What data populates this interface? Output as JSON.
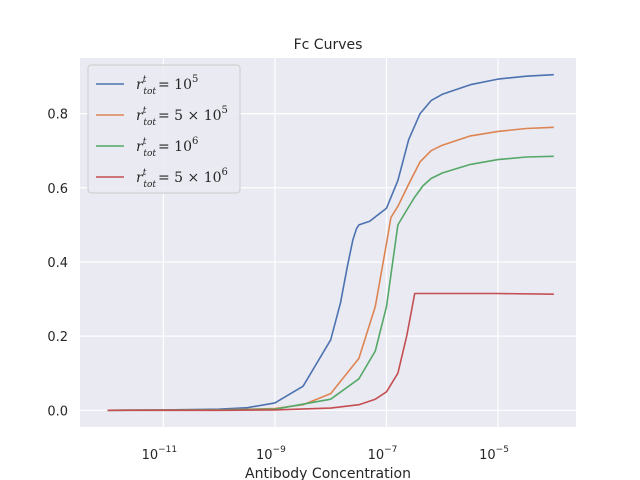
{
  "chart_data": {
    "type": "line",
    "title": "Fc Curves",
    "xlabel": "Antibody Concentration",
    "ylabel": "",
    "xscale": "log",
    "xlim": [
      3.2e-13,
      0.00025
    ],
    "ylim": [
      -0.045,
      0.95
    ],
    "grid": true,
    "legend_position": "top-left",
    "xticks": [
      {
        "value": 1e-11,
        "base": "10",
        "exp": "−11"
      },
      {
        "value": 1e-09,
        "base": "10",
        "exp": "−9"
      },
      {
        "value": 1e-07,
        "base": "10",
        "exp": "−7"
      },
      {
        "value": 1e-05,
        "base": "10",
        "exp": "−5"
      }
    ],
    "yticks": [
      {
        "value": 0.0,
        "label": "0.0"
      },
      {
        "value": 0.2,
        "label": "0.2"
      },
      {
        "value": 0.4,
        "label": "0.4"
      },
      {
        "value": 0.6,
        "label": "0.6"
      },
      {
        "value": 0.8,
        "label": "0.8"
      }
    ],
    "series": [
      {
        "name": "r_tot^t = 10^5",
        "legend": {
          "pre": "= 10",
          "sup": "5",
          "post": ""
        },
        "color": "#4c72b0",
        "x": [
          1e-12,
          1e-11,
          1e-10,
          3.2e-10,
          1e-09,
          3.2e-09,
          1e-08,
          1.5e-08,
          2e-08,
          2.5e-08,
          2.9e-08,
          3.2e-08,
          5e-08,
          1e-07,
          1.6e-07,
          2.5e-07,
          4e-07,
          6.3e-07,
          1e-06,
          3.2e-06,
          1e-05,
          3.2e-05,
          0.0001
        ],
        "y": [
          0.0,
          0.001,
          0.003,
          0.007,
          0.02,
          0.065,
          0.19,
          0.29,
          0.39,
          0.46,
          0.49,
          0.5,
          0.51,
          0.545,
          0.62,
          0.73,
          0.8,
          0.835,
          0.852,
          0.878,
          0.893,
          0.901,
          0.905
        ]
      },
      {
        "name": "r_tot^t = 5 × 10^5",
        "legend": {
          "pre": "= 5 × 10",
          "sup": "5",
          "post": ""
        },
        "color": "#dd8452",
        "x": [
          1e-12,
          1e-10,
          1e-09,
          3.2e-09,
          1e-08,
          3.2e-08,
          6.3e-08,
          1e-07,
          1.2e-07,
          1.6e-07,
          2.5e-07,
          4e-07,
          6.3e-07,
          1e-06,
          3.2e-06,
          1e-05,
          3.2e-05,
          0.0001
        ],
        "y": [
          0.0,
          0.001,
          0.005,
          0.015,
          0.045,
          0.14,
          0.28,
          0.45,
          0.52,
          0.55,
          0.61,
          0.67,
          0.7,
          0.715,
          0.74,
          0.752,
          0.76,
          0.763
        ]
      },
      {
        "name": "r_tot^t = 10^6",
        "legend": {
          "pre": "= 10",
          "sup": "6",
          "post": ""
        },
        "color": "#55a868",
        "x": [
          1e-12,
          1e-10,
          1e-09,
          1e-08,
          3.2e-08,
          6.3e-08,
          1e-07,
          1.6e-07,
          2.3e-07,
          3.2e-07,
          4.5e-07,
          6.3e-07,
          1e-06,
          3.2e-06,
          1e-05,
          3.2e-05,
          0.0001
        ],
        "y": [
          0.0,
          0.001,
          0.003,
          0.03,
          0.085,
          0.16,
          0.28,
          0.5,
          0.54,
          0.575,
          0.605,
          0.625,
          0.64,
          0.663,
          0.676,
          0.683,
          0.685
        ]
      },
      {
        "name": "r_tot^t = 5 × 10^6",
        "legend": {
          "pre": "= 5 × 10",
          "sup": "6",
          "post": ""
        },
        "color": "#c44e52",
        "x": [
          1e-12,
          1e-10,
          1e-09,
          1e-08,
          3.2e-08,
          6.3e-08,
          1e-07,
          1.6e-07,
          2.3e-07,
          2.9e-07,
          3.2e-07,
          1e-06,
          1e-05,
          0.0001
        ],
        "y": [
          0.0,
          0.0,
          0.001,
          0.006,
          0.015,
          0.03,
          0.05,
          0.1,
          0.2,
          0.28,
          0.315,
          0.315,
          0.315,
          0.313
        ]
      }
    ]
  }
}
